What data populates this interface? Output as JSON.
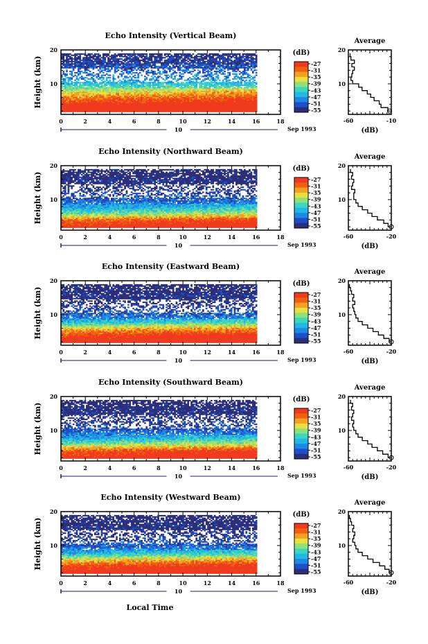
{
  "figure": {
    "panel_title_prefix": "Echo Intensity",
    "date_label": "Sep 1993",
    "day_label": "10",
    "xlabel": "Local Time",
    "ylabel": "Height (km)",
    "colorbar_unit": "(dB)",
    "colorbar_ticks": [
      "-27",
      "-31",
      "-35",
      "-39",
      "-43",
      "-47",
      "-51",
      "-55"
    ],
    "avg_title": "Average",
    "avg_xlabel": "(dB)"
  },
  "colors": {
    "scale": [
      "#2b2f7a",
      "#1f4fc8",
      "#1e88e5",
      "#22b8e6",
      "#3ad6c0",
      "#8ee07a",
      "#e8e040",
      "#f5a020",
      "#f06010",
      "#f03a1e"
    ]
  },
  "chart_data": [
    {
      "type": "heatmap",
      "title": "Echo Intensity (Vertical Beam)",
      "x_ticks": [
        "0",
        "2",
        "4",
        "6",
        "8",
        "10",
        "12",
        "14",
        "16",
        "18"
      ],
      "y_ticks": [
        "20",
        "10"
      ],
      "xlim": [
        0,
        18
      ],
      "ylim": [
        1,
        20
      ],
      "data_x_range": [
        0,
        16
      ],
      "data_y_range": [
        2,
        19
      ],
      "value_range_db": [
        -55,
        -27
      ],
      "profile": [
        [
          2,
          -24
        ],
        [
          4,
          -27
        ],
        [
          6,
          -33
        ],
        [
          8,
          -38
        ],
        [
          10,
          -44
        ],
        [
          12,
          -48
        ],
        [
          14,
          -50
        ],
        [
          16,
          -52
        ],
        [
          18,
          -54
        ]
      ],
      "average": {
        "type": "line",
        "title": "Average",
        "xlabel": "(dB)",
        "x_ticks": [
          "-60",
          "-10"
        ],
        "y_ticks": [
          "20",
          "10"
        ],
        "xlim": [
          -60,
          -10
        ],
        "ylim": [
          1,
          20
        ],
        "points": [
          [
            -12,
            2
          ],
          [
            -14,
            3
          ],
          [
            -22,
            4
          ],
          [
            -24,
            5
          ],
          [
            -30,
            6
          ],
          [
            -34,
            7
          ],
          [
            -38,
            8
          ],
          [
            -44,
            9
          ],
          [
            -48,
            10
          ],
          [
            -55,
            11
          ],
          [
            -57,
            12
          ],
          [
            -56,
            13
          ],
          [
            -55,
            14
          ],
          [
            -53,
            15
          ],
          [
            -56,
            16
          ],
          [
            -53,
            17
          ],
          [
            -57,
            18
          ],
          [
            -58,
            19
          ]
        ]
      }
    },
    {
      "type": "heatmap",
      "title": "Echo Intensity (Northward Beam)",
      "x_ticks": [
        "0",
        "2",
        "4",
        "6",
        "8",
        "10",
        "12",
        "14",
        "16",
        "18"
      ],
      "y_ticks": [
        "20",
        "10"
      ],
      "xlim": [
        0,
        18
      ],
      "ylim": [
        1,
        20
      ],
      "data_x_range": [
        0,
        16
      ],
      "data_y_range": [
        2,
        19
      ],
      "value_range_db": [
        -55,
        -27
      ],
      "profile": [
        [
          2,
          -27
        ],
        [
          4,
          -31
        ],
        [
          6,
          -41
        ],
        [
          8,
          -47
        ],
        [
          10,
          -50
        ],
        [
          12,
          -52
        ],
        [
          14,
          -54
        ],
        [
          16,
          -54
        ],
        [
          18,
          -55
        ]
      ],
      "average": {
        "type": "line",
        "title": "Average",
        "xlabel": "(dB)",
        "x_ticks": [
          "-60",
          "-20"
        ],
        "y_ticks": [
          "20",
          "10"
        ],
        "xlim": [
          -60,
          -20
        ],
        "ylim": [
          1,
          20
        ],
        "points": [
          [
            -20,
            2
          ],
          [
            -23,
            3
          ],
          [
            -27,
            4
          ],
          [
            -33,
            5
          ],
          [
            -38,
            6
          ],
          [
            -42,
            7
          ],
          [
            -47,
            8
          ],
          [
            -51,
            9
          ],
          [
            -53,
            10
          ],
          [
            -55,
            11
          ],
          [
            -55,
            12
          ],
          [
            -54,
            13
          ],
          [
            -57,
            14
          ],
          [
            -56,
            15
          ],
          [
            -55,
            16
          ],
          [
            -57,
            17
          ],
          [
            -56,
            18
          ],
          [
            -58,
            19
          ]
        ]
      }
    },
    {
      "type": "heatmap",
      "title": "Echo Intensity (Eastward Beam)",
      "x_ticks": [
        "0",
        "2",
        "4",
        "6",
        "8",
        "10",
        "12",
        "14",
        "16",
        "18"
      ],
      "y_ticks": [
        "20",
        "10"
      ],
      "xlim": [
        0,
        18
      ],
      "ylim": [
        1,
        20
      ],
      "data_x_range": [
        0,
        16
      ],
      "data_y_range": [
        2,
        19
      ],
      "value_range_db": [
        -55,
        -27
      ],
      "profile": [
        [
          2,
          -26
        ],
        [
          4,
          -29
        ],
        [
          6,
          -36
        ],
        [
          8,
          -45
        ],
        [
          10,
          -50
        ],
        [
          12,
          -52
        ],
        [
          14,
          -54
        ],
        [
          16,
          -54
        ],
        [
          18,
          -55
        ]
      ],
      "average": {
        "type": "line",
        "title": "Average",
        "xlabel": "(dB)",
        "x_ticks": [
          "-60",
          "-20"
        ],
        "y_ticks": [
          "20",
          "10"
        ],
        "xlim": [
          -60,
          -20
        ],
        "ylim": [
          1,
          20
        ],
        "points": [
          [
            -20,
            2
          ],
          [
            -22,
            3
          ],
          [
            -27,
            4
          ],
          [
            -32,
            5
          ],
          [
            -37,
            6
          ],
          [
            -42,
            7
          ],
          [
            -47,
            8
          ],
          [
            -51,
            9
          ],
          [
            -53,
            10
          ],
          [
            -54,
            11
          ],
          [
            -55,
            12
          ],
          [
            -56,
            13
          ],
          [
            -54,
            14
          ],
          [
            -56,
            15
          ],
          [
            -55,
            16
          ],
          [
            -57,
            17
          ],
          [
            -58,
            18
          ],
          [
            -59,
            19
          ]
        ]
      }
    },
    {
      "type": "heatmap",
      "title": "Echo Intensity (Southward Beam)",
      "x_ticks": [
        "0",
        "2",
        "4",
        "6",
        "8",
        "10",
        "12",
        "14",
        "16",
        "18"
      ],
      "y_ticks": [
        "20",
        "10"
      ],
      "xlim": [
        0,
        18
      ],
      "ylim": [
        1,
        20
      ],
      "data_x_range": [
        0,
        16
      ],
      "data_y_range": [
        2,
        19
      ],
      "value_range_db": [
        -55,
        -27
      ],
      "profile": [
        [
          2,
          -27
        ],
        [
          4,
          -30
        ],
        [
          6,
          -40
        ],
        [
          8,
          -47
        ],
        [
          10,
          -50
        ],
        [
          12,
          -52
        ],
        [
          14,
          -54
        ],
        [
          16,
          -54
        ],
        [
          18,
          -55
        ]
      ],
      "average": {
        "type": "line",
        "title": "Average",
        "xlabel": "(dB)",
        "x_ticks": [
          "-60",
          "-20"
        ],
        "y_ticks": [
          "20",
          "10"
        ],
        "xlim": [
          -60,
          -20
        ],
        "ylim": [
          1,
          20
        ],
        "points": [
          [
            -20,
            2
          ],
          [
            -23,
            3
          ],
          [
            -28,
            4
          ],
          [
            -33,
            5
          ],
          [
            -38,
            6
          ],
          [
            -42,
            7
          ],
          [
            -47,
            8
          ],
          [
            -51,
            9
          ],
          [
            -53,
            10
          ],
          [
            -55,
            11
          ],
          [
            -56,
            12
          ],
          [
            -55,
            13
          ],
          [
            -57,
            14
          ],
          [
            -56,
            15
          ],
          [
            -55,
            16
          ],
          [
            -57,
            17
          ],
          [
            -56,
            18
          ],
          [
            -58,
            19
          ]
        ]
      }
    },
    {
      "type": "heatmap",
      "title": "Echo Intensity (Westward Beam)",
      "x_ticks": [
        "0",
        "2",
        "4",
        "6",
        "8",
        "10",
        "12",
        "14",
        "16",
        "18"
      ],
      "y_ticks": [
        "20",
        "10"
      ],
      "xlim": [
        0,
        18
      ],
      "ylim": [
        1,
        20
      ],
      "data_x_range": [
        0,
        16
      ],
      "data_y_range": [
        2,
        19
      ],
      "value_range_db": [
        -55,
        -27
      ],
      "profile": [
        [
          2,
          -26
        ],
        [
          4,
          -29
        ],
        [
          6,
          -37
        ],
        [
          8,
          -46
        ],
        [
          10,
          -50
        ],
        [
          12,
          -52
        ],
        [
          14,
          -54
        ],
        [
          16,
          -54
        ],
        [
          18,
          -55
        ]
      ],
      "average": {
        "type": "line",
        "title": "Average",
        "xlabel": "(dB)",
        "x_ticks": [
          "-60",
          "-20"
        ],
        "y_ticks": [
          "20",
          "10"
        ],
        "xlim": [
          -60,
          -20
        ],
        "ylim": [
          1,
          20
        ],
        "points": [
          [
            -20,
            2
          ],
          [
            -22,
            3
          ],
          [
            -26,
            4
          ],
          [
            -31,
            5
          ],
          [
            -37,
            6
          ],
          [
            -42,
            7
          ],
          [
            -47,
            8
          ],
          [
            -51,
            9
          ],
          [
            -53,
            10
          ],
          [
            -54,
            11
          ],
          [
            -56,
            12
          ],
          [
            -55,
            13
          ],
          [
            -54,
            14
          ],
          [
            -56,
            15
          ],
          [
            -55,
            16
          ],
          [
            -57,
            17
          ],
          [
            -58,
            18
          ],
          [
            -59,
            19
          ]
        ]
      }
    }
  ]
}
